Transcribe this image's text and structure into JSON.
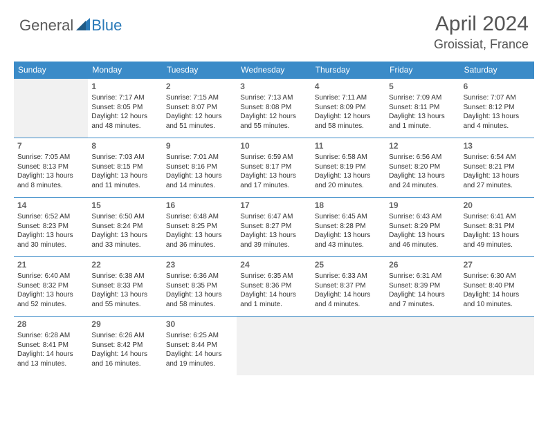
{
  "logo": {
    "text1": "General",
    "text2": "Blue"
  },
  "title": "April 2024",
  "location": "Groissiat, France",
  "colors": {
    "header_bg": "#3b8bc8",
    "header_text": "#ffffff",
    "border": "#3b8bc8",
    "blank_bg": "#f1f1f1",
    "logo_gray": "#5a5a5a",
    "logo_blue": "#2a7ab8",
    "title_color": "#555555",
    "body_text": "#333333"
  },
  "day_headers": [
    "Sunday",
    "Monday",
    "Tuesday",
    "Wednesday",
    "Thursday",
    "Friday",
    "Saturday"
  ],
  "weeks": [
    [
      {
        "blank": true
      },
      {
        "n": "1",
        "sr": "7:17 AM",
        "ss": "8:05 PM",
        "dl": "12 hours and 48 minutes."
      },
      {
        "n": "2",
        "sr": "7:15 AM",
        "ss": "8:07 PM",
        "dl": "12 hours and 51 minutes."
      },
      {
        "n": "3",
        "sr": "7:13 AM",
        "ss": "8:08 PM",
        "dl": "12 hours and 55 minutes."
      },
      {
        "n": "4",
        "sr": "7:11 AM",
        "ss": "8:09 PM",
        "dl": "12 hours and 58 minutes."
      },
      {
        "n": "5",
        "sr": "7:09 AM",
        "ss": "8:11 PM",
        "dl": "13 hours and 1 minute."
      },
      {
        "n": "6",
        "sr": "7:07 AM",
        "ss": "8:12 PM",
        "dl": "13 hours and 4 minutes."
      }
    ],
    [
      {
        "n": "7",
        "sr": "7:05 AM",
        "ss": "8:13 PM",
        "dl": "13 hours and 8 minutes."
      },
      {
        "n": "8",
        "sr": "7:03 AM",
        "ss": "8:15 PM",
        "dl": "13 hours and 11 minutes."
      },
      {
        "n": "9",
        "sr": "7:01 AM",
        "ss": "8:16 PM",
        "dl": "13 hours and 14 minutes."
      },
      {
        "n": "10",
        "sr": "6:59 AM",
        "ss": "8:17 PM",
        "dl": "13 hours and 17 minutes."
      },
      {
        "n": "11",
        "sr": "6:58 AM",
        "ss": "8:19 PM",
        "dl": "13 hours and 20 minutes."
      },
      {
        "n": "12",
        "sr": "6:56 AM",
        "ss": "8:20 PM",
        "dl": "13 hours and 24 minutes."
      },
      {
        "n": "13",
        "sr": "6:54 AM",
        "ss": "8:21 PM",
        "dl": "13 hours and 27 minutes."
      }
    ],
    [
      {
        "n": "14",
        "sr": "6:52 AM",
        "ss": "8:23 PM",
        "dl": "13 hours and 30 minutes."
      },
      {
        "n": "15",
        "sr": "6:50 AM",
        "ss": "8:24 PM",
        "dl": "13 hours and 33 minutes."
      },
      {
        "n": "16",
        "sr": "6:48 AM",
        "ss": "8:25 PM",
        "dl": "13 hours and 36 minutes."
      },
      {
        "n": "17",
        "sr": "6:47 AM",
        "ss": "8:27 PM",
        "dl": "13 hours and 39 minutes."
      },
      {
        "n": "18",
        "sr": "6:45 AM",
        "ss": "8:28 PM",
        "dl": "13 hours and 43 minutes."
      },
      {
        "n": "19",
        "sr": "6:43 AM",
        "ss": "8:29 PM",
        "dl": "13 hours and 46 minutes."
      },
      {
        "n": "20",
        "sr": "6:41 AM",
        "ss": "8:31 PM",
        "dl": "13 hours and 49 minutes."
      }
    ],
    [
      {
        "n": "21",
        "sr": "6:40 AM",
        "ss": "8:32 PM",
        "dl": "13 hours and 52 minutes."
      },
      {
        "n": "22",
        "sr": "6:38 AM",
        "ss": "8:33 PM",
        "dl": "13 hours and 55 minutes."
      },
      {
        "n": "23",
        "sr": "6:36 AM",
        "ss": "8:35 PM",
        "dl": "13 hours and 58 minutes."
      },
      {
        "n": "24",
        "sr": "6:35 AM",
        "ss": "8:36 PM",
        "dl": "14 hours and 1 minute."
      },
      {
        "n": "25",
        "sr": "6:33 AM",
        "ss": "8:37 PM",
        "dl": "14 hours and 4 minutes."
      },
      {
        "n": "26",
        "sr": "6:31 AM",
        "ss": "8:39 PM",
        "dl": "14 hours and 7 minutes."
      },
      {
        "n": "27",
        "sr": "6:30 AM",
        "ss": "8:40 PM",
        "dl": "14 hours and 10 minutes."
      }
    ],
    [
      {
        "n": "28",
        "sr": "6:28 AM",
        "ss": "8:41 PM",
        "dl": "14 hours and 13 minutes."
      },
      {
        "n": "29",
        "sr": "6:26 AM",
        "ss": "8:42 PM",
        "dl": "14 hours and 16 minutes."
      },
      {
        "n": "30",
        "sr": "6:25 AM",
        "ss": "8:44 PM",
        "dl": "14 hours and 19 minutes."
      },
      {
        "blank": true
      },
      {
        "blank": true
      },
      {
        "blank": true
      },
      {
        "blank": true
      }
    ]
  ],
  "labels": {
    "sunrise": "Sunrise: ",
    "sunset": "Sunset: ",
    "daylight": "Daylight: "
  }
}
